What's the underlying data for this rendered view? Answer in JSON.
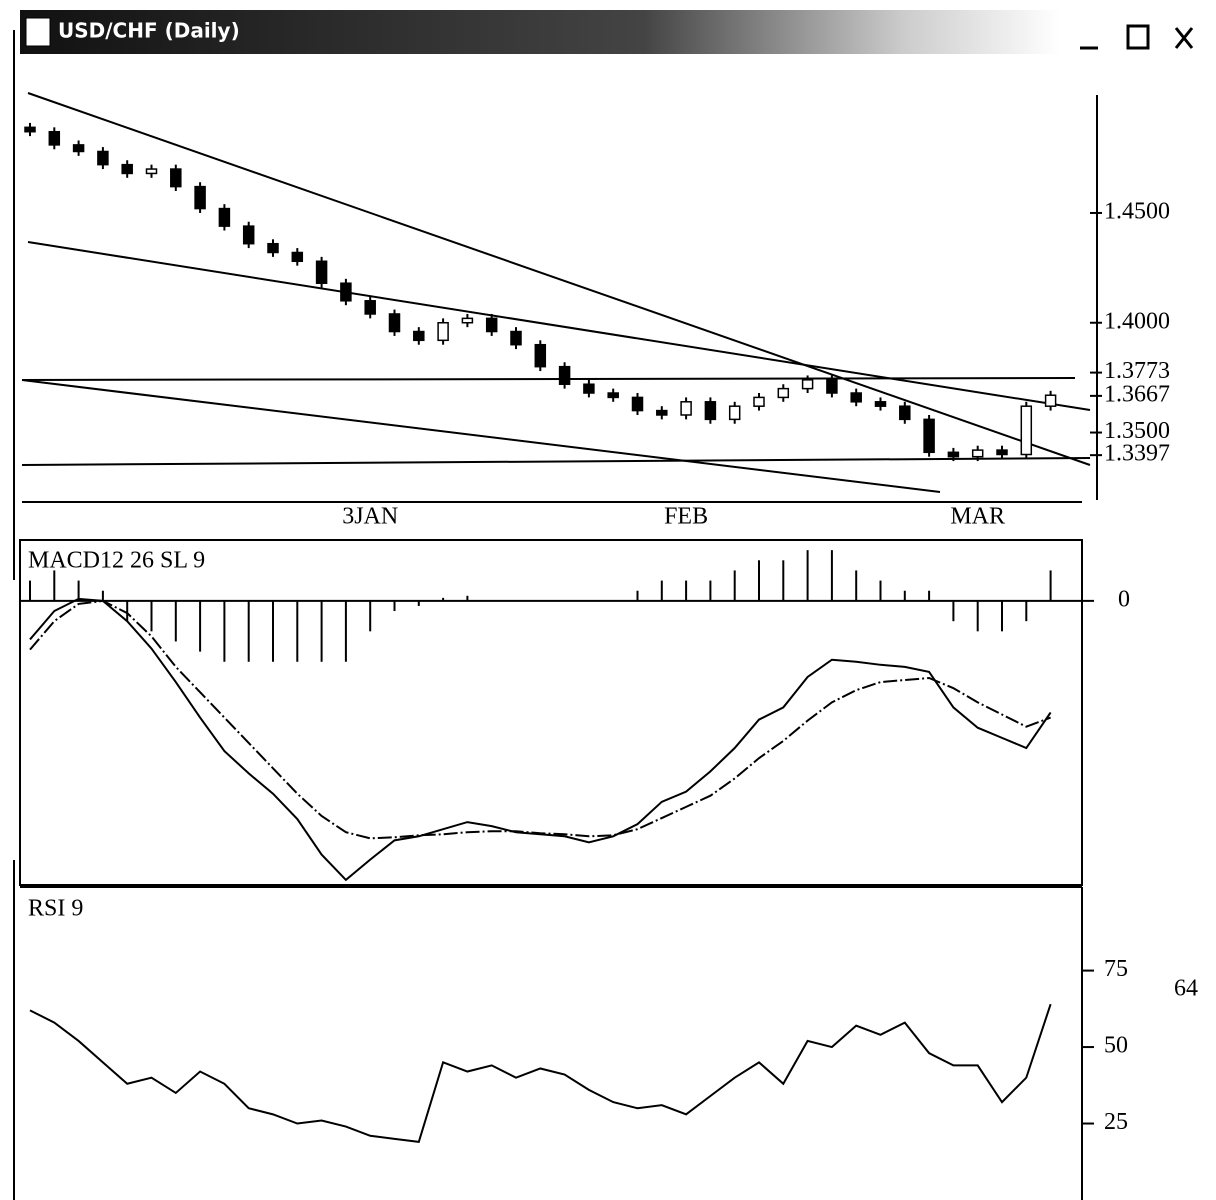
{
  "window": {
    "title": "USD/CHF (Daily)"
  },
  "chart_data": [
    {
      "type": "candlestick",
      "categories": [
        null,
        null,
        null,
        null,
        null,
        null,
        null,
        null,
        null,
        null,
        null,
        null,
        null,
        null,
        "3JAN",
        null,
        null,
        null,
        null,
        null,
        null,
        null,
        null,
        null,
        null,
        null,
        null,
        "FEB",
        null,
        null,
        null,
        null,
        null,
        null,
        null,
        null,
        null,
        null,
        null,
        "MAR",
        null,
        null,
        null
      ],
      "open": [
        1.489,
        1.487,
        1.481,
        1.478,
        1.472,
        1.468,
        1.47,
        1.462,
        1.452,
        1.444,
        1.436,
        1.432,
        1.428,
        1.418,
        1.41,
        1.404,
        1.396,
        1.392,
        1.4,
        1.402,
        1.396,
        1.39,
        1.38,
        1.372,
        1.368,
        1.366,
        1.36,
        1.358,
        1.364,
        1.356,
        1.362,
        1.366,
        1.37,
        1.374,
        1.368,
        1.364,
        1.362,
        1.356,
        1.341,
        1.339,
        1.342,
        1.34,
        1.362
      ],
      "high": [
        1.491,
        1.489,
        1.483,
        1.48,
        1.474,
        1.472,
        1.472,
        1.464,
        1.454,
        1.446,
        1.438,
        1.434,
        1.43,
        1.42,
        1.412,
        1.406,
        1.398,
        1.402,
        1.404,
        1.404,
        1.398,
        1.392,
        1.382,
        1.374,
        1.37,
        1.368,
        1.362,
        1.366,
        1.366,
        1.364,
        1.368,
        1.372,
        1.376,
        1.376,
        1.37,
        1.366,
        1.364,
        1.358,
        1.343,
        1.344,
        1.344,
        1.364,
        1.369
      ],
      "low": [
        1.485,
        1.479,
        1.476,
        1.47,
        1.466,
        1.466,
        1.46,
        1.45,
        1.442,
        1.434,
        1.43,
        1.426,
        1.416,
        1.408,
        1.402,
        1.394,
        1.39,
        1.39,
        1.398,
        1.394,
        1.388,
        1.378,
        1.37,
        1.366,
        1.364,
        1.358,
        1.356,
        1.356,
        1.354,
        1.354,
        1.36,
        1.364,
        1.368,
        1.366,
        1.362,
        1.36,
        1.354,
        1.339,
        1.337,
        1.337,
        1.338,
        1.338,
        1.36
      ],
      "close": [
        1.487,
        1.481,
        1.478,
        1.472,
        1.468,
        1.47,
        1.462,
        1.452,
        1.444,
        1.436,
        1.432,
        1.428,
        1.418,
        1.41,
        1.404,
        1.396,
        1.392,
        1.4,
        1.402,
        1.396,
        1.39,
        1.38,
        1.372,
        1.368,
        1.366,
        1.36,
        1.358,
        1.364,
        1.356,
        1.362,
        1.366,
        1.37,
        1.374,
        1.368,
        1.364,
        1.362,
        1.356,
        1.341,
        1.339,
        1.342,
        1.34,
        1.362,
        1.367
      ],
      "up_color": "#ffffff",
      "down_color": "#000000",
      "ylim": [
        1.317,
        1.506
      ],
      "yticks": [
        {
          "value": 1.45,
          "label": "1.4500"
        },
        {
          "value": 1.4,
          "label": "1.4000"
        },
        {
          "value": 1.3773,
          "label": "1.3773"
        },
        {
          "value": 1.3667,
          "label": "1.3667"
        },
        {
          "value": 1.35,
          "label": "1.3500"
        },
        1.3397
      ]
    },
    {
      "type": "line",
      "title": "MACD12  26  SL  9",
      "series": [
        {
          "type": "bar",
          "color": "#000000",
          "values": [
            0.002,
            0.003,
            0.002,
            0.001,
            -0.002,
            -0.003,
            -0.004,
            -0.005,
            -0.006,
            -0.006,
            -0.006,
            -0.006,
            -0.006,
            -0.006,
            -0.003,
            -0.001,
            -0.0005,
            0.0003,
            0.0005,
            0,
            0,
            0,
            0,
            0,
            0,
            0.001,
            0.002,
            0.002,
            0.002,
            0.003,
            0.004,
            0.004,
            0.005,
            0.005,
            0.003,
            0.002,
            0.001,
            0.001,
            -0.002,
            -0.003,
            -0.003,
            -0.002,
            0.003
          ]
        },
        {
          "type": "line",
          "color": "#000000",
          "values": [
            -0.0038,
            -0.001,
            0.0002,
            0,
            -0.002,
            -0.0047,
            -0.008,
            -0.0115,
            -0.0148,
            -0.017,
            -0.019,
            -0.0215,
            -0.025,
            -0.0275,
            -0.0255,
            -0.0236,
            -0.0232,
            -0.0225,
            -0.0218,
            -0.0222,
            -0.0228,
            -0.023,
            -0.0232,
            -0.0238,
            -0.0232,
            -0.022,
            -0.0198,
            -0.0188,
            -0.0168,
            -0.0145,
            -0.0117,
            -0.0105,
            -0.0075,
            -0.0058,
            -0.006,
            -0.0063,
            -0.0065,
            -0.007,
            -0.0105,
            -0.0125,
            -0.0135,
            -0.0145,
            -0.011
          ]
        },
        {
          "type": "line",
          "color": "#000000",
          "dashed": true,
          "values": [
            -0.0048,
            -0.002,
            -0.0003,
            0,
            -0.0012,
            -0.0035,
            -0.0065,
            -0.009,
            -0.0115,
            -0.014,
            -0.0165,
            -0.019,
            -0.0212,
            -0.0228,
            -0.0234,
            -0.0233,
            -0.0231,
            -0.023,
            -0.0228,
            -0.0227,
            -0.0227,
            -0.0229,
            -0.023,
            -0.0232,
            -0.0231,
            -0.0225,
            -0.0214,
            -0.0203,
            -0.0192,
            -0.0175,
            -0.0155,
            -0.0138,
            -0.0118,
            -0.01,
            -0.0088,
            -0.008,
            -0.0078,
            -0.0076,
            -0.0086,
            -0.01,
            -0.0112,
            -0.0124,
            -0.0115
          ]
        }
      ],
      "ylim": [
        -0.028,
        0.006
      ],
      "yticks": [
        0
      ]
    },
    {
      "type": "line",
      "title": "RSI   9",
      "series": [
        {
          "type": "line",
          "color": "#000000",
          "last_label": true,
          "values": [
            62,
            58,
            52,
            45,
            38,
            40,
            35,
            42,
            38,
            30,
            28,
            25,
            26,
            24,
            21,
            20,
            19,
            45,
            42,
            44,
            40,
            43,
            41,
            36,
            32,
            30,
            31,
            28,
            34,
            40,
            45,
            38,
            52,
            50,
            57,
            54,
            58,
            48,
            44,
            44,
            32,
            40,
            64
          ]
        }
      ],
      "ylim": [
        0,
        102
      ],
      "yticks": [
        75,
        50,
        25
      ]
    }
  ]
}
